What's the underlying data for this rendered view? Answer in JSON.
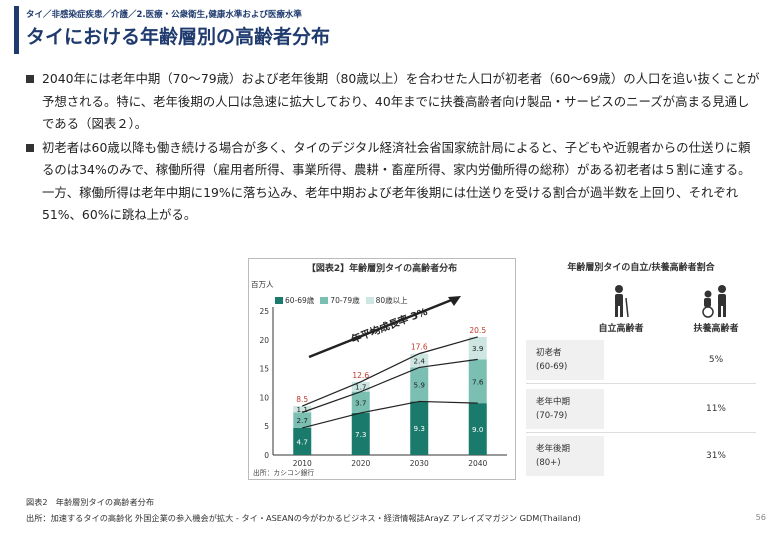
{
  "header": {
    "breadcrumb": "タイ／非感染症疾患／介護／2.医療・公衆衛生,健康水準および医療水準",
    "title": "タイにおける年齢層別の高齢者分布"
  },
  "bullets": [
    "2040年には老年中期（70～79歳）および老年後期（80歳以上）を合わせた人口が初老者（60～69歳）の人口を追い抜くことが予想される。特に、老年後期の人口は急速に拡大しており、40年までに扶養高齢者向け製品・サービスのニーズが高まる見通しである（図表２）。",
    "初老者は60歳以降も働き続ける場合が多く、タイのデジタル経済社会省国家統計局によると、子どもや近親者からの仕送りに頼るのは34%のみで、稼働所得（雇用者所得、事業所得、農耕・畜産所得、家内労働所得の総称）がある初老者は５割に達する。一方、稼働所得は老年中期に19%に落ち込み、老年中期および老年後期には仕送りを受ける割合が過半数を上回り、それぞれ51%、60%に跳ね上がる。"
  ],
  "figure": {
    "left_title": "【図表2】年齢層別タイの高齢者分布",
    "unit_label": "百万人",
    "growth_label": "年平均成長率 3%",
    "source_note": "出所：カシコン銀行",
    "right_title": "年齢層別タイの自立/扶養高齢者割合",
    "col_independent": "自立高齢者",
    "col_dependent": "扶養高齢者",
    "rows": [
      {
        "label_1": "初老者",
        "label_2": "(60-69)",
        "value": "5%"
      },
      {
        "label_1": "老年中期",
        "label_2": "(70-79)",
        "value": "11%"
      },
      {
        "label_1": "老年後期",
        "label_2": "(80+)",
        "value": "31%"
      }
    ]
  },
  "chart_data": {
    "type": "bar",
    "stacked": true,
    "title": "【図表2】年齢層別タイの高齢者分布",
    "ylabel": "百万人",
    "ylim": [
      0,
      25
    ],
    "yticks": [
      0,
      5,
      10,
      15,
      20,
      25
    ],
    "categories": [
      "2010",
      "2020",
      "2030",
      "2040"
    ],
    "series": [
      {
        "name": "60-69歳",
        "values": [
          4.7,
          7.3,
          9.3,
          9.0
        ],
        "color": "#1a7a6b"
      },
      {
        "name": "70-79歳",
        "values": [
          2.7,
          3.7,
          5.9,
          7.6
        ],
        "color": "#7bbfb3"
      },
      {
        "name": "80歳以上",
        "values": [
          1.1,
          1.7,
          2.4,
          3.9
        ],
        "color": "#cde6e1"
      }
    ],
    "totals": [
      8.5,
      12.6,
      17.6,
      20.5
    ],
    "total_color": "#c0392b",
    "legend": "top-left"
  },
  "caption": "図表2　年齢層別タイの高齢者分布",
  "footer_source": "出所：加速するタイの高齢化 外国企業の参入機会が拡大 - タイ・ASEANの今がわかるビジネス・経済情報誌ArayZ アレイズマガジン GDM(Thailand)",
  "page_number": "56"
}
